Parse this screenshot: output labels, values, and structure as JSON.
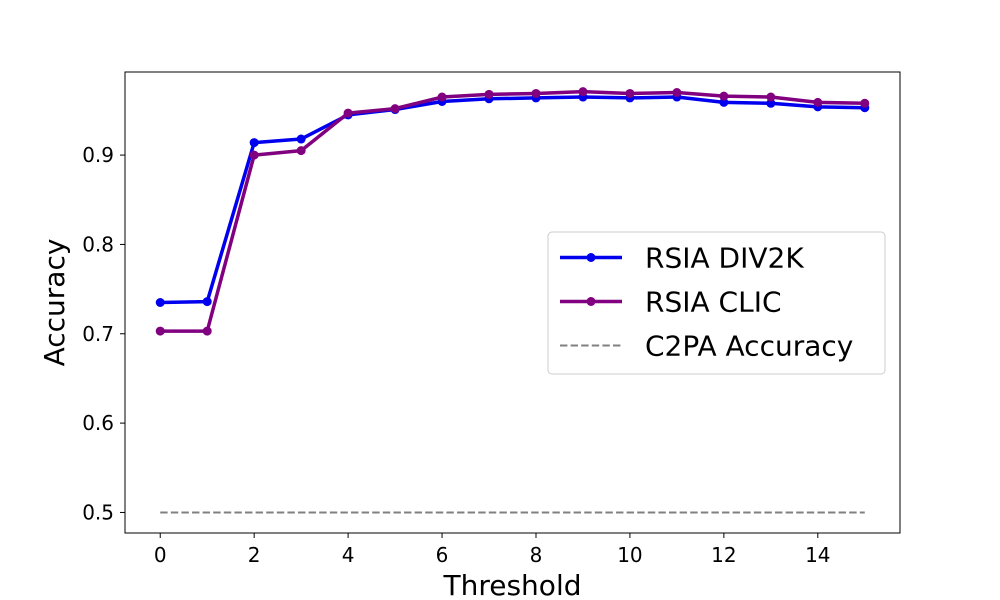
{
  "chart_data": {
    "type": "line",
    "title": "",
    "xlabel": "Threshold",
    "ylabel": "Accuracy",
    "xlim": [
      -0.75,
      15.75
    ],
    "ylim": [
      0.477,
      0.993
    ],
    "xticks": [
      0,
      2,
      4,
      6,
      8,
      10,
      12,
      14
    ],
    "yticks": [
      0.5,
      0.6,
      0.7,
      0.8,
      0.9
    ],
    "xtick_labels": [
      "0",
      "2",
      "4",
      "6",
      "8",
      "10",
      "12",
      "14"
    ],
    "ytick_labels": [
      "0.5",
      "0.6",
      "0.7",
      "0.8",
      "0.9"
    ],
    "grid": false,
    "legend_position": "center-right",
    "x": [
      0,
      1,
      2,
      3,
      4,
      5,
      6,
      7,
      8,
      9,
      10,
      11,
      12,
      13,
      14,
      15
    ],
    "series": [
      {
        "name": "RSIA DIV2K",
        "color": "#0000ee",
        "style": "solid-markers",
        "values": [
          0.735,
          0.736,
          0.914,
          0.918,
          0.945,
          0.951,
          0.96,
          0.963,
          0.964,
          0.965,
          0.964,
          0.965,
          0.959,
          0.958,
          0.954,
          0.953
        ]
      },
      {
        "name": "RSIA CLIC",
        "color": "#800080",
        "style": "solid-markers",
        "values": [
          0.703,
          0.703,
          0.9,
          0.905,
          0.947,
          0.952,
          0.965,
          0.968,
          0.969,
          0.971,
          0.969,
          0.97,
          0.966,
          0.965,
          0.959,
          0.958
        ]
      },
      {
        "name": "C2PA Accuracy",
        "color": "#808080",
        "style": "dashed",
        "values": [
          0.5,
          0.5,
          0.5,
          0.5,
          0.5,
          0.5,
          0.5,
          0.5,
          0.5,
          0.5,
          0.5,
          0.5,
          0.5,
          0.5,
          0.5,
          0.5
        ]
      }
    ]
  }
}
